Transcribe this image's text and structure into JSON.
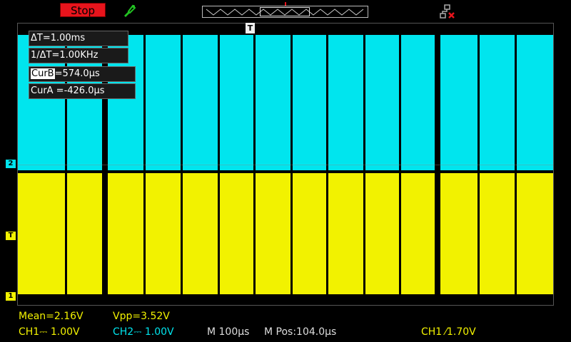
{
  "toolbar": {
    "run_state": "Stop",
    "probe_icon": "probe-icon",
    "network_icon": "network-disconnected-icon"
  },
  "cursor_readout": {
    "delta_t": "ΔT=1.00ms",
    "inverse_delta_t": "1/ΔT=1.00KHz",
    "cur_b_label": "CurB",
    "cur_b_value": "=574.0µs",
    "cur_a": "CurA =-426.0µs"
  },
  "markers": {
    "trigger": "T",
    "ch2": "2",
    "ch1": "1",
    "ch1_trigger_level": "T"
  },
  "measurements": {
    "mean": "Mean=2.16V",
    "vpp": "Vpp=3.52V"
  },
  "status_bar": {
    "ch1": "CH1⎓ 1.00V",
    "ch2": "CH2⎓ 1.00V",
    "timebase": "M 100µs",
    "mpos": "M Pos:104.0µs",
    "trigger": "CH1 ⁄1.70V"
  },
  "colors": {
    "ch1": "#f2f200",
    "ch2": "#00e5ee",
    "stop": "#e8141c"
  }
}
